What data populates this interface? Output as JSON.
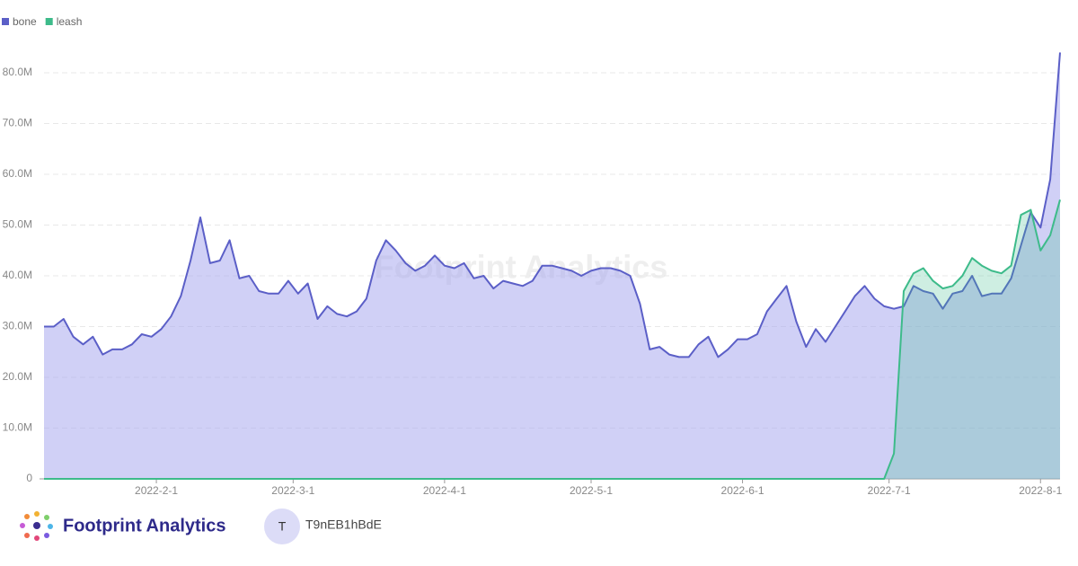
{
  "chart_data": {
    "type": "area",
    "watermark": "Footprint Analytics",
    "x": [
      "2022-01-09",
      "2022-01-11",
      "2022-01-13",
      "2022-01-15",
      "2022-01-17",
      "2022-01-19",
      "2022-01-21",
      "2022-01-23",
      "2022-01-25",
      "2022-01-27",
      "2022-01-29",
      "2022-01-31",
      "2022-02-02",
      "2022-02-04",
      "2022-02-06",
      "2022-02-08",
      "2022-02-10",
      "2022-02-12",
      "2022-02-14",
      "2022-02-16",
      "2022-02-18",
      "2022-02-20",
      "2022-02-22",
      "2022-02-24",
      "2022-02-26",
      "2022-02-28",
      "2022-03-02",
      "2022-03-04",
      "2022-03-06",
      "2022-03-08",
      "2022-03-10",
      "2022-03-12",
      "2022-03-14",
      "2022-03-16",
      "2022-03-18",
      "2022-03-20",
      "2022-03-22",
      "2022-03-24",
      "2022-03-26",
      "2022-03-28",
      "2022-03-30",
      "2022-04-01",
      "2022-04-03",
      "2022-04-05",
      "2022-04-07",
      "2022-04-09",
      "2022-04-11",
      "2022-04-13",
      "2022-04-15",
      "2022-04-17",
      "2022-04-19",
      "2022-04-21",
      "2022-04-23",
      "2022-04-25",
      "2022-04-27",
      "2022-04-29",
      "2022-05-01",
      "2022-05-03",
      "2022-05-05",
      "2022-05-07",
      "2022-05-09",
      "2022-05-11",
      "2022-05-13",
      "2022-05-15",
      "2022-05-17",
      "2022-05-19",
      "2022-05-21",
      "2022-05-23",
      "2022-05-25",
      "2022-05-27",
      "2022-05-29",
      "2022-05-31",
      "2022-06-02",
      "2022-06-04",
      "2022-06-06",
      "2022-06-08",
      "2022-06-10",
      "2022-06-12",
      "2022-06-14",
      "2022-06-16",
      "2022-06-18",
      "2022-06-20",
      "2022-06-22",
      "2022-06-24",
      "2022-06-26",
      "2022-06-28",
      "2022-06-30",
      "2022-07-02",
      "2022-07-04",
      "2022-07-06",
      "2022-07-08",
      "2022-07-10",
      "2022-07-12",
      "2022-07-14",
      "2022-07-16",
      "2022-07-18",
      "2022-07-20",
      "2022-07-22",
      "2022-07-24",
      "2022-07-26",
      "2022-07-28",
      "2022-07-30",
      "2022-08-01",
      "2022-08-03",
      "2022-08-05"
    ],
    "series": [
      {
        "name": "bone",
        "color": "#5b5fc7",
        "fill": "rgba(170,170,238,0.55)",
        "values": [
          30,
          30,
          31.5,
          28,
          26.5,
          28,
          24.5,
          25.5,
          25.5,
          26.5,
          28.5,
          28,
          29.5,
          32,
          36,
          43,
          51.5,
          42.5,
          43,
          47,
          39.5,
          40,
          37,
          36.5,
          36.5,
          39,
          36.5,
          38.5,
          31.5,
          34,
          32.5,
          32,
          33,
          35.5,
          43,
          47,
          45,
          42.5,
          41,
          42,
          44,
          42,
          41.5,
          42.5,
          39.5,
          40,
          37.5,
          39,
          38.5,
          38,
          39,
          42,
          42,
          41.5,
          41,
          40,
          41,
          41.5,
          41.5,
          41,
          40,
          34.5,
          25.5,
          26,
          24.5,
          24,
          24,
          26.5,
          28,
          24,
          25.5,
          27.5,
          27.5,
          28.5,
          33,
          35.5,
          38,
          31,
          26,
          29.5,
          27,
          30,
          33,
          36,
          38,
          35.5,
          34,
          33.5,
          34,
          38,
          37,
          36.5,
          33.5,
          36.5,
          37,
          40,
          36,
          36.5,
          36.5,
          39.5,
          46,
          52.5,
          49.5,
          59,
          84
        ]
      },
      {
        "name": "leash",
        "color": "#3dbb8a",
        "fill": "rgba(61,187,138,0.25)",
        "values": [
          0,
          0,
          0,
          0,
          0,
          0,
          0,
          0,
          0,
          0,
          0,
          0,
          0,
          0,
          0,
          0,
          0,
          0,
          0,
          0,
          0,
          0,
          0,
          0,
          0,
          0,
          0,
          0,
          0,
          0,
          0,
          0,
          0,
          0,
          0,
          0,
          0,
          0,
          0,
          0,
          0,
          0,
          0,
          0,
          0,
          0,
          0,
          0,
          0,
          0,
          0,
          0,
          0,
          0,
          0,
          0,
          0,
          0,
          0,
          0,
          0,
          0,
          0,
          0,
          0,
          0,
          0,
          0,
          0,
          0,
          0,
          0,
          0,
          0,
          0,
          0,
          0,
          0,
          0,
          0,
          0,
          0,
          0,
          0,
          0,
          0,
          0,
          5,
          37,
          40.5,
          41.5,
          39,
          37.5,
          38,
          40,
          43.5,
          42,
          41,
          40.5,
          42,
          52,
          53,
          45,
          48,
          55
        ]
      }
    ],
    "xlim": [
      "2022-01-09",
      "2022-08-05"
    ],
    "xticks": [
      {
        "value": "2022-02-01",
        "label": "2022-2-1"
      },
      {
        "value": "2022-03-01",
        "label": "2022-3-1"
      },
      {
        "value": "2022-04-01",
        "label": "2022-4-1"
      },
      {
        "value": "2022-05-01",
        "label": "2022-5-1"
      },
      {
        "value": "2022-06-01",
        "label": "2022-6-1"
      },
      {
        "value": "2022-07-01",
        "label": "2022-7-1"
      },
      {
        "value": "2022-08-01",
        "label": "2022-8-1"
      }
    ],
    "ylim": [
      0,
      90
    ],
    "yticks": [
      0,
      {
        "value": 10,
        "label": "10.0M"
      },
      {
        "value": 20,
        "label": "20.0M"
      },
      {
        "value": 30,
        "label": "30.0M"
      },
      {
        "value": 40,
        "label": "40.0M"
      },
      {
        "value": 50,
        "label": "50.0M"
      },
      {
        "value": 60,
        "label": "60.0M"
      },
      {
        "value": 70,
        "label": "70.0M"
      },
      {
        "value": 80,
        "label": "80.0M"
      }
    ],
    "grid": true,
    "legend": "top-left"
  },
  "footer": {
    "brand": "Footprint Analytics",
    "avatar": "T",
    "user": "T9nEB1hBdE"
  }
}
